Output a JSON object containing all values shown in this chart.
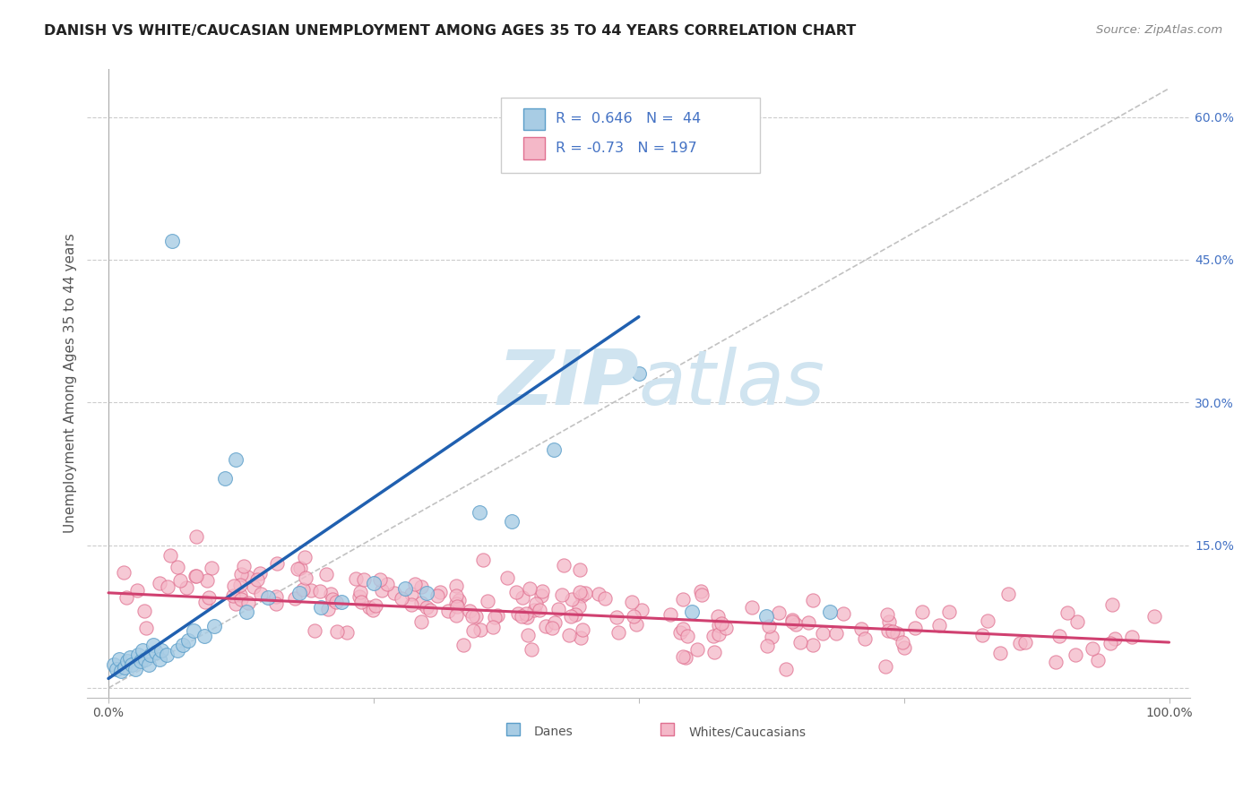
{
  "title": "DANISH VS WHITE/CAUCASIAN UNEMPLOYMENT AMONG AGES 35 TO 44 YEARS CORRELATION CHART",
  "source": "Source: ZipAtlas.com",
  "ylabel": "Unemployment Among Ages 35 to 44 years",
  "xlim": [
    -0.02,
    1.02
  ],
  "ylim": [
    -0.01,
    0.65
  ],
  "ytick_positions": [
    0.0,
    0.15,
    0.3,
    0.45,
    0.6
  ],
  "ytick_labels": [
    "",
    "15.0%",
    "30.0%",
    "45.0%",
    "60.0%"
  ],
  "danes_color": "#a8cce4",
  "danes_edge_color": "#5b9ec9",
  "whites_color": "#f4b8c8",
  "whites_edge_color": "#e07090",
  "danes_R": 0.646,
  "danes_N": 44,
  "whites_R": -0.73,
  "whites_N": 197,
  "legend_label_danes": "Danes",
  "legend_label_whites": "Whites/Caucasians",
  "trend_blue_color": "#2060b0",
  "trend_pink_color": "#d04070",
  "ref_line_color": "#bbbbbb",
  "watermark_color": "#d0e4f0",
  "background_color": "#ffffff",
  "title_fontsize": 11.5,
  "source_fontsize": 9.5,
  "axis_label_fontsize": 11,
  "tick_fontsize": 10,
  "legend_value_color": "#4472c4",
  "legend_text_color": "#555555"
}
